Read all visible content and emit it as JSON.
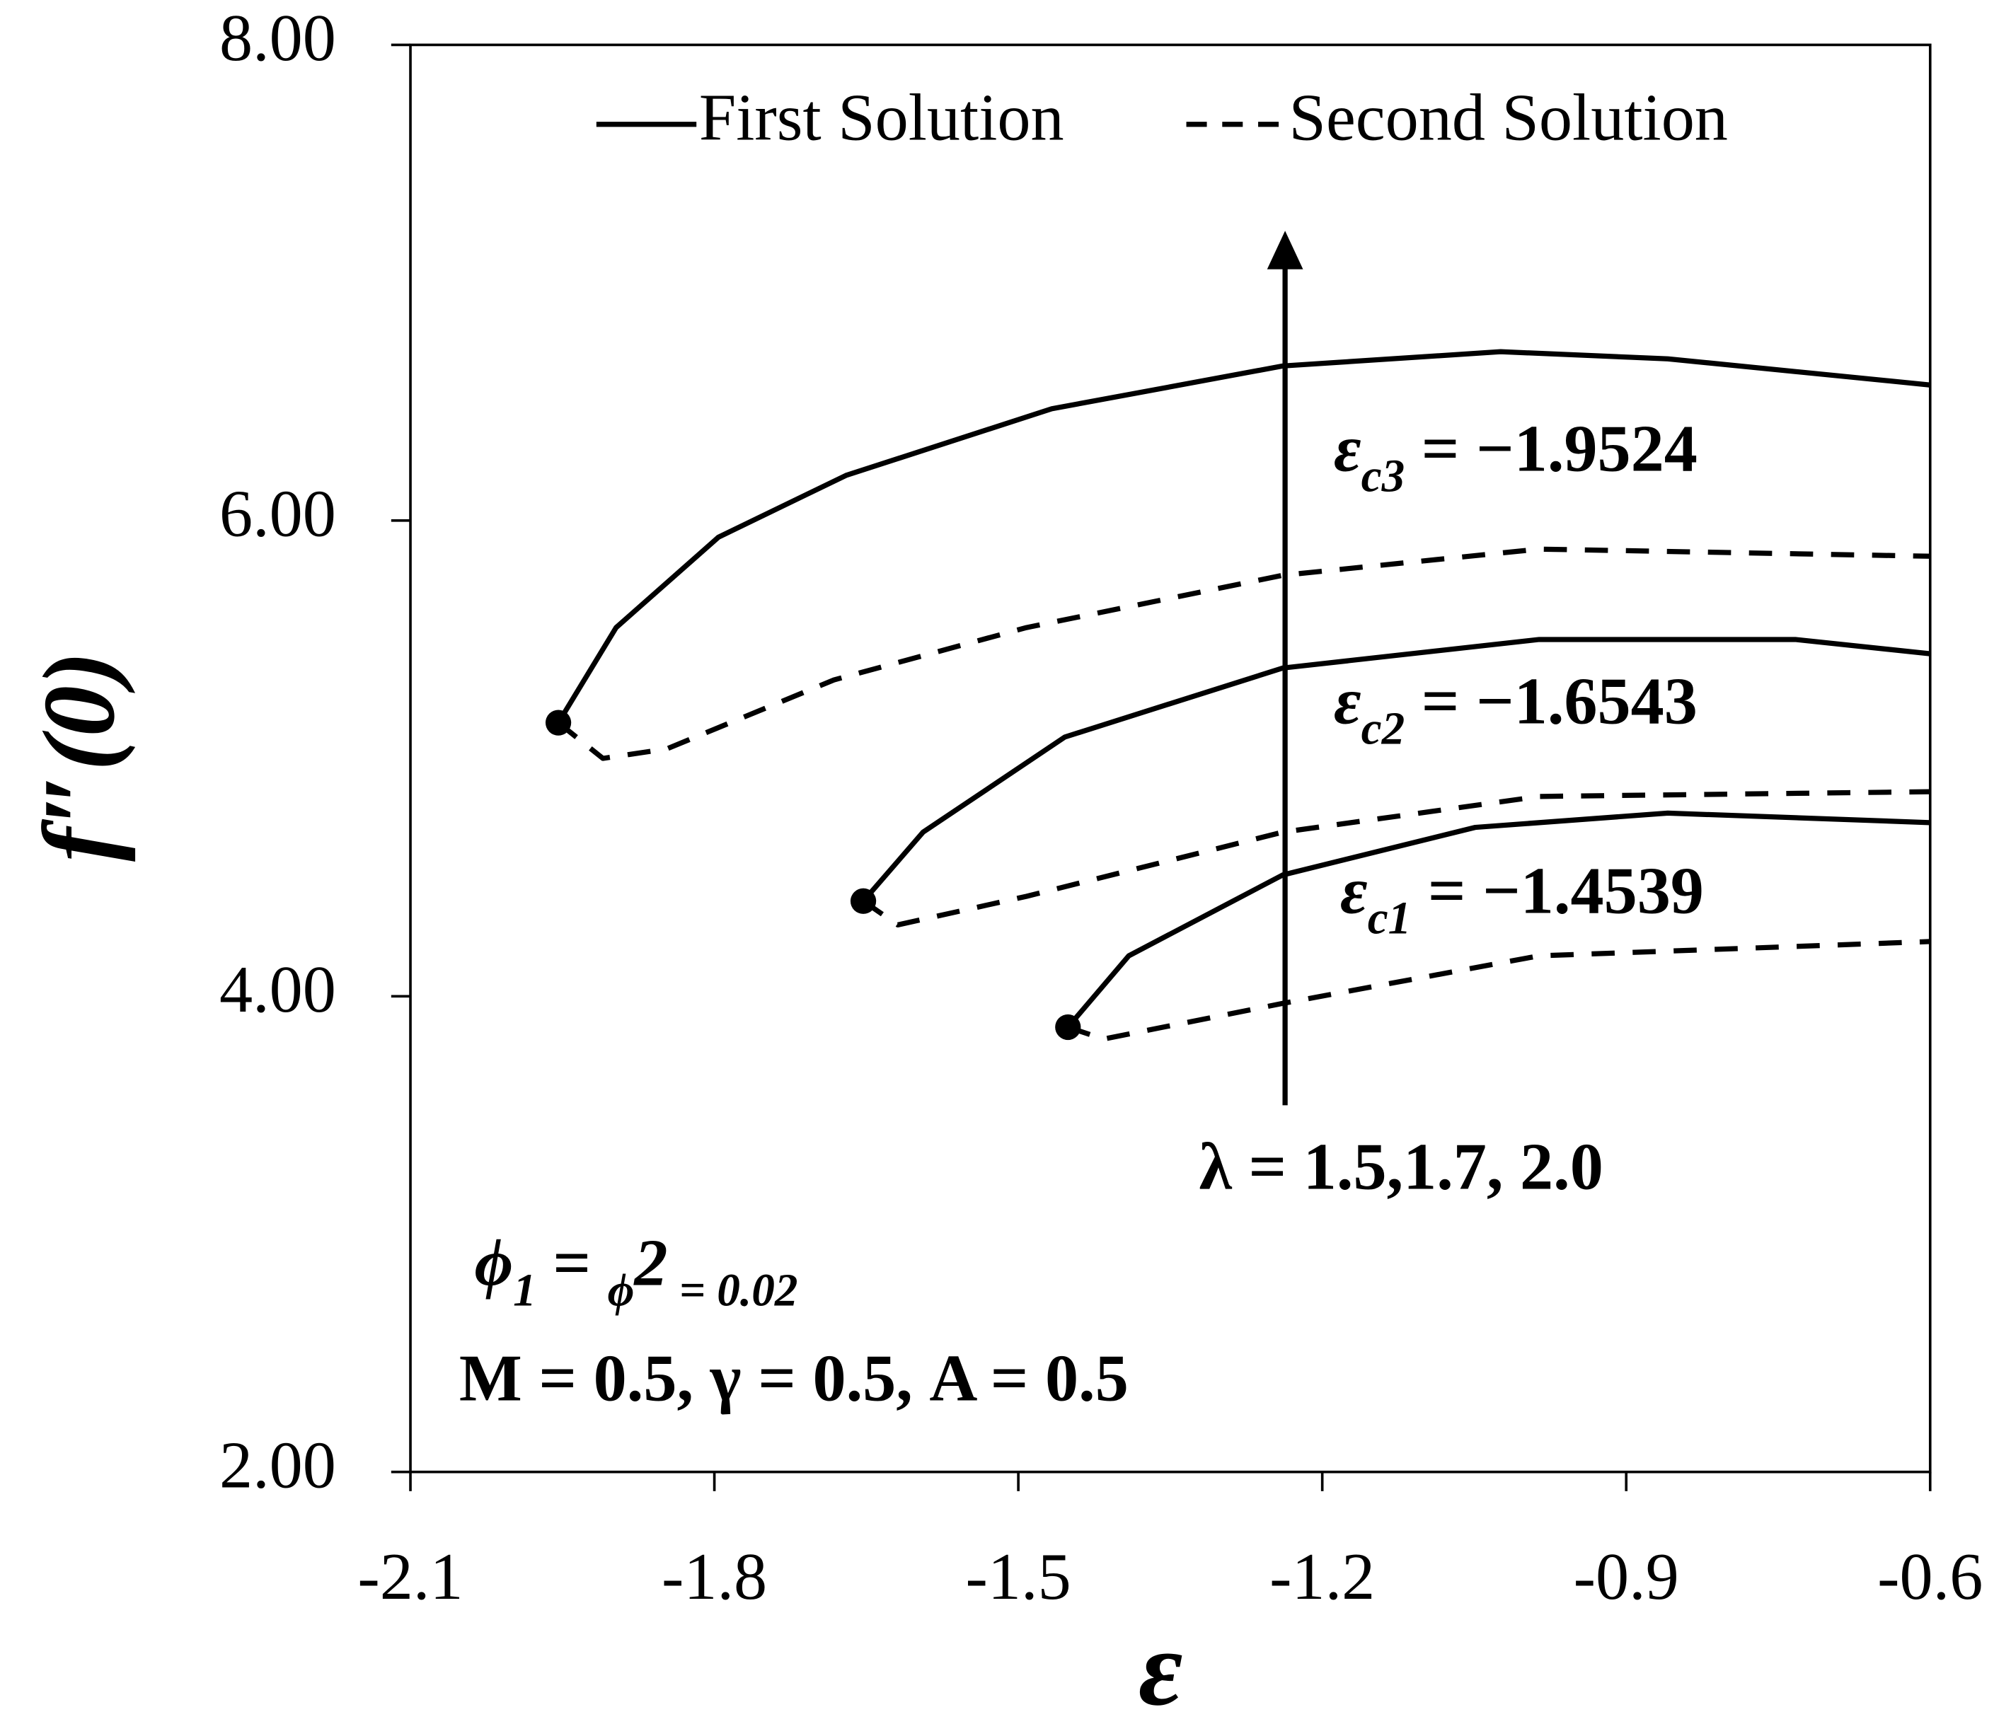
{
  "chart_data": {
    "type": "line",
    "xlabel": "ε",
    "ylabel": "f″(0)",
    "xlim": [
      -2.1,
      -0.6
    ],
    "xticks": [
      -2.1,
      -1.8,
      -1.5,
      -1.2,
      -0.9,
      -0.6
    ],
    "ylim": [
      2,
      8
    ],
    "yticks": [
      {
        "value": 2,
        "label": "2.00"
      },
      {
        "value": 4,
        "label": "4.00"
      },
      {
        "value": 6,
        "label": "6.00"
      },
      {
        "value": 8,
        "label": "8.00"
      }
    ],
    "grid": false,
    "legend": "top",
    "series": [
      {
        "name": "First Solution",
        "color": "#000000",
        "dashed": false,
        "x": [
          -1.954,
          -1.897,
          -1.796,
          -1.67,
          -1.467,
          -1.239,
          -1.024,
          -0.859,
          -0.6
        ],
        "values": [
          5.15,
          5.55,
          5.93,
          6.19,
          6.47,
          6.65,
          6.71,
          6.68,
          6.57
        ]
      },
      {
        "name": "Second Solution",
        "color": "#000000",
        "dashed": true,
        "x": [
          -1.954,
          -1.91,
          -1.847,
          -1.682,
          -1.492,
          -1.239,
          -0.986,
          -0.6
        ],
        "values": [
          5.15,
          5.0,
          5.04,
          5.33,
          5.55,
          5.77,
          5.88,
          5.85
        ]
      },
      {
        "name": "First Solution",
        "color": "#000000",
        "dashed": false,
        "x": [
          -1.653,
          -1.594,
          -1.454,
          -1.239,
          -0.986,
          -0.733,
          -0.6
        ],
        "values": [
          4.4,
          4.69,
          5.09,
          5.38,
          5.5,
          5.5,
          5.44
        ]
      },
      {
        "name": "Second Solution",
        "color": "#000000",
        "dashed": true,
        "x": [
          -1.653,
          -1.619,
          -1.492,
          -1.239,
          -0.986,
          -0.6
        ],
        "values": [
          4.4,
          4.3,
          4.42,
          4.69,
          4.84,
          4.86
        ]
      },
      {
        "name": "First Solution",
        "color": "#000000",
        "dashed": false,
        "x": [
          -1.451,
          -1.391,
          -1.239,
          -1.049,
          -0.859,
          -0.6
        ],
        "values": [
          3.87,
          4.17,
          4.51,
          4.71,
          4.77,
          4.73
        ]
      },
      {
        "name": "Second Solution",
        "color": "#000000",
        "dashed": true,
        "x": [
          -1.451,
          -1.416,
          -1.239,
          -0.986,
          -0.6
        ],
        "values": [
          3.87,
          3.82,
          3.97,
          4.17,
          4.23
        ]
      }
    ],
    "annotations": [
      {
        "parts": [
          "ε",
          "c3",
          " = −1.9524"
        ]
      },
      {
        "parts": [
          "ε",
          "c2",
          " = −1.6543"
        ]
      },
      {
        "parts": [
          "ε",
          "c1",
          " = −1.4539"
        ]
      },
      {
        "parts": [
          "λ = 1.5,1.7, 2.0"
        ]
      },
      {
        "parts": [
          "ϕ",
          "1",
          " = ",
          "ϕ",
          "2",
          " = 0.02"
        ]
      },
      {
        "parts": [
          "M = 0.5, γ = 0.5, A = 0.5"
        ]
      }
    ]
  }
}
